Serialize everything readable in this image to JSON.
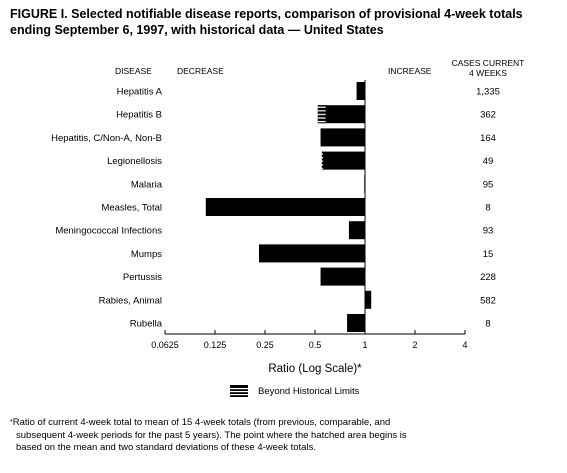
{
  "title_line1": "FIGURE I. Selected notifiable disease reports, comparison of provisional 4-week totals",
  "title_line2": "ending September 6, 1997, with historical data — United States",
  "headers": {
    "disease": "DISEASE",
    "decrease": "DECREASE",
    "increase": "INCREASE",
    "cases_line1": "CASES CURRENT",
    "cases_line2": "4 WEEKS"
  },
  "legend_label": "Beyond Historical Limits",
  "footnote_symbol": "*",
  "footnote_line1": "Ratio of current 4-week total to mean of 15 4-week totals (from previous, comparable, and",
  "footnote_line2": "subsequent 4-week periods for the past 5 years). The point where the hatched area begins is",
  "footnote_line3": "based on the mean and two standard deviations of these 4-week totals.",
  "colors": {
    "bar": "#000000",
    "hatch_bg": "#ffffff",
    "axis": "#000000"
  },
  "chart_data": {
    "type": "bar",
    "orientation": "horizontal",
    "xscale": "log2",
    "xlabel": "Ratio (Log Scale)*",
    "xlim": [
      0.0625,
      4
    ],
    "xticks": [
      "0.0625",
      "0.125",
      "0.25",
      "0.5",
      "1",
      "2",
      "4"
    ],
    "baseline": 1,
    "categories": [
      "Hepatitis A",
      "Hepatitis B",
      "Hepatitis, C/Non-A, Non-B",
      "Legionellosis",
      "Malaria",
      "Measles, Total",
      "Meningococcal Infections",
      "Mumps",
      "Pertussis",
      "Rabies, Animal",
      "Rubella"
    ],
    "values": [
      0.89,
      0.52,
      0.54,
      0.55,
      0.99,
      0.11,
      0.8,
      0.23,
      0.54,
      1.09,
      0.78
    ],
    "hatched_to": [
      null,
      0.58,
      null,
      0.56,
      null,
      null,
      null,
      null,
      null,
      null,
      null
    ],
    "cases": [
      "1,335",
      "362",
      "164",
      "49",
      "95",
      "8",
      "93",
      "15",
      "228",
      "582",
      "8"
    ]
  }
}
